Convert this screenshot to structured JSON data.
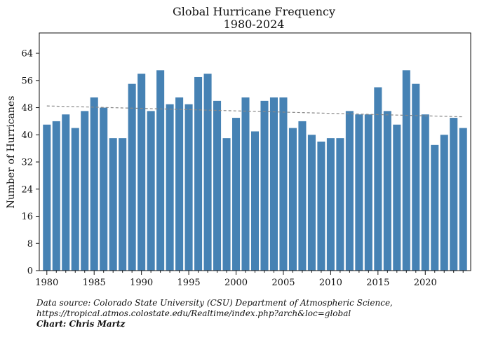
{
  "chart_data": {
    "type": "bar",
    "title": [
      "Global Hurricane Frequency",
      "1980-2024"
    ],
    "xlabel": "",
    "ylabel": "Number of Hurricanes",
    "ylim": [
      0,
      70
    ],
    "xlim": [
      1979.2,
      2024.8
    ],
    "yticks": [
      0,
      8,
      16,
      24,
      32,
      40,
      48,
      56,
      64
    ],
    "xticks": [
      1980,
      1985,
      1990,
      1995,
      2000,
      2005,
      2010,
      2015,
      2020
    ],
    "bar_color": "#4682b4",
    "trend_color": "#888888",
    "grid": false,
    "legend": "none",
    "categories": [
      1980,
      1981,
      1982,
      1983,
      1984,
      1985,
      1986,
      1987,
      1988,
      1989,
      1990,
      1991,
      1992,
      1993,
      1994,
      1995,
      1996,
      1997,
      1998,
      1999,
      2000,
      2001,
      2002,
      2003,
      2004,
      2005,
      2006,
      2007,
      2008,
      2009,
      2010,
      2011,
      2012,
      2013,
      2014,
      2015,
      2016,
      2017,
      2018,
      2019,
      2020,
      2021,
      2022,
      2023,
      2024
    ],
    "values": [
      43,
      44,
      46,
      42,
      47,
      51,
      48,
      39,
      39,
      55,
      58,
      47,
      59,
      49,
      51,
      49,
      57,
      58,
      50,
      39,
      45,
      51,
      41,
      50,
      51,
      51,
      42,
      44,
      40,
      38,
      39,
      39,
      47,
      46,
      46,
      54,
      47,
      43,
      59,
      55,
      46,
      37,
      40,
      45,
      42
    ],
    "trend_line": {
      "style": "dashed",
      "start": [
        1980,
        48.5
      ],
      "end": [
        2024,
        45.3
      ]
    }
  },
  "caption": {
    "source_line1": "Data source: Colorado State University (CSU) Department of Atmospheric Science,",
    "source_line2": "https://tropical.atmos.colostate.edu/Realtime/index.php?arch&loc=global",
    "credit": "Chart: Chris Martz"
  }
}
